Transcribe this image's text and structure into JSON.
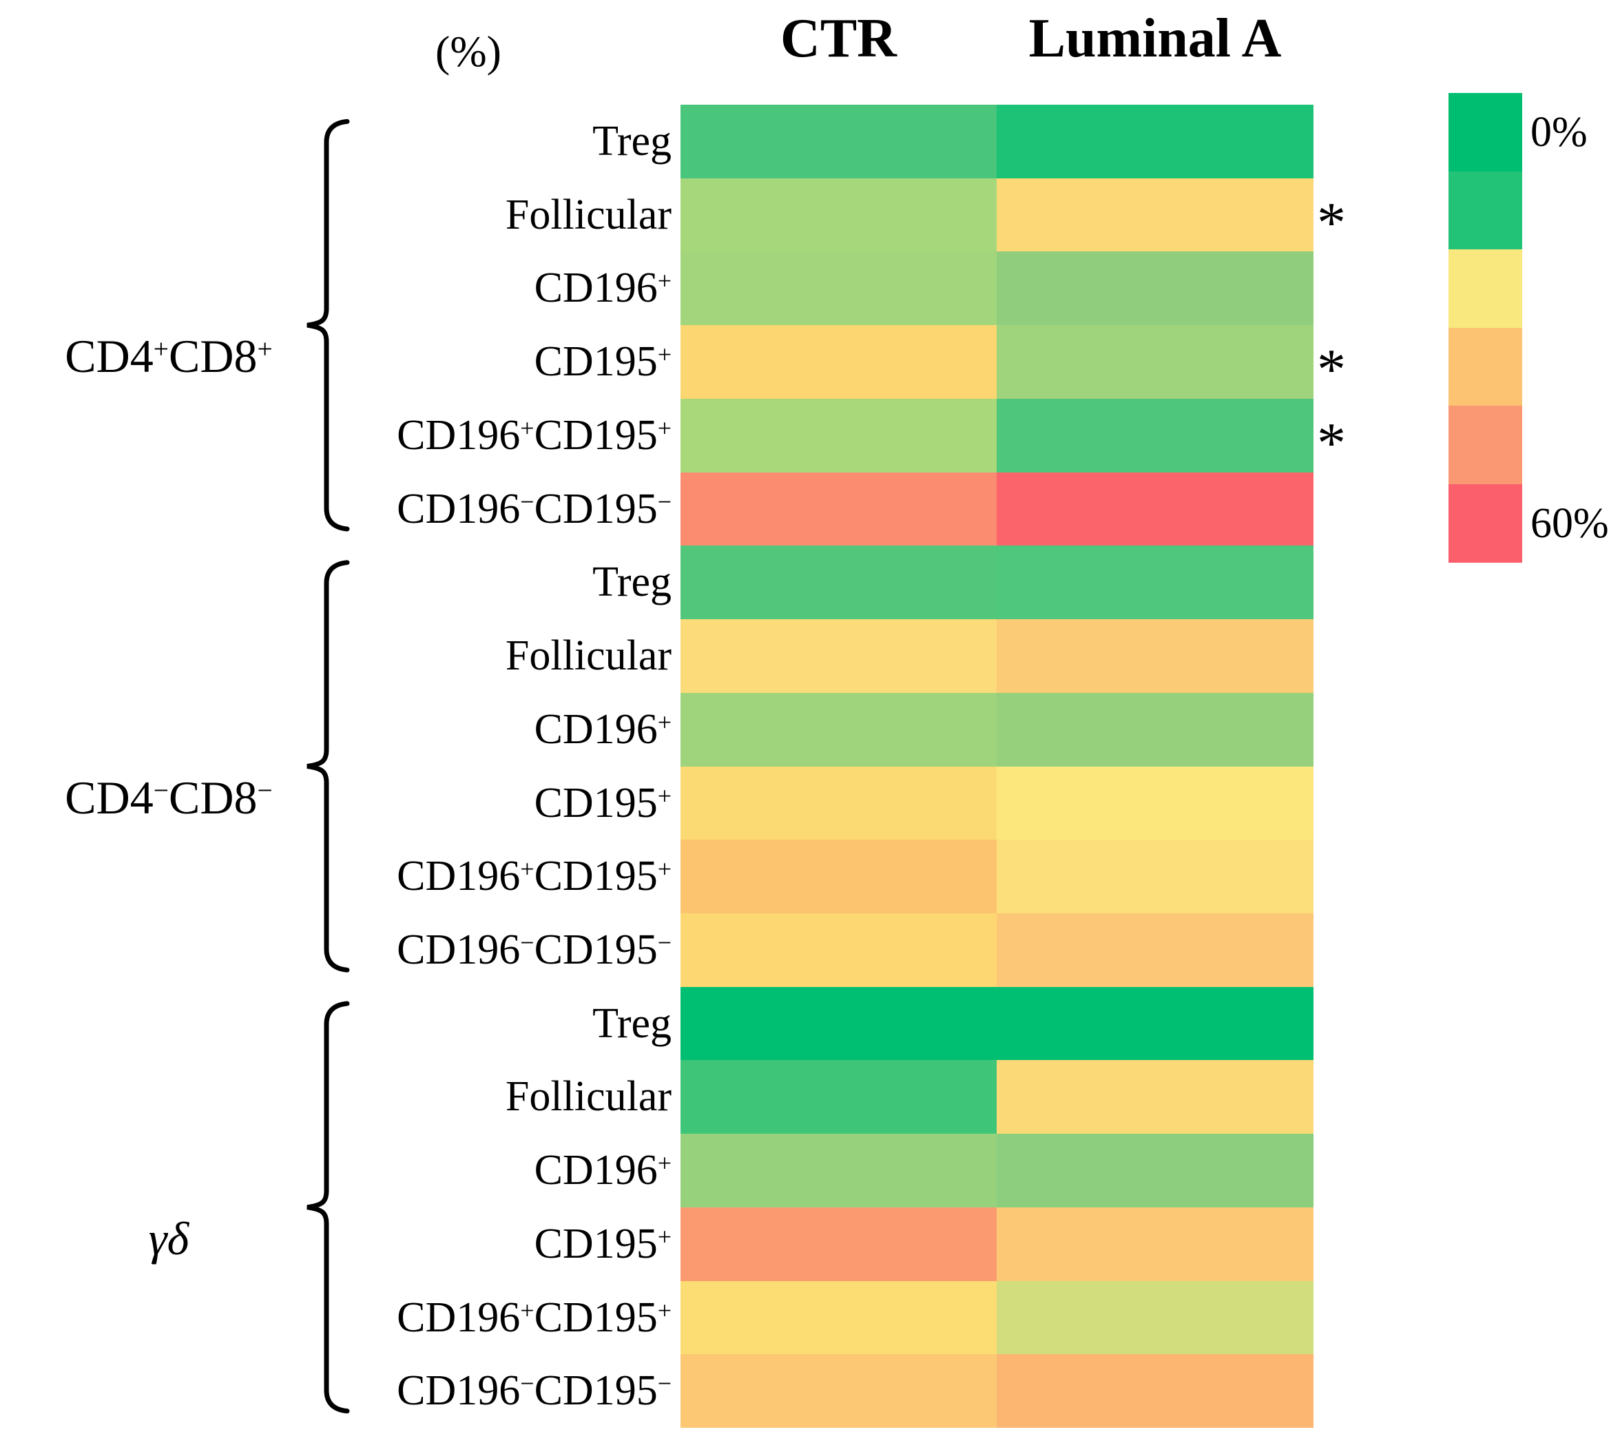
{
  "header": {
    "unit_label": "(%)",
    "columns": [
      "CTR",
      "Luminal A"
    ]
  },
  "legend": {
    "min_label": "0%",
    "max_label": "60%",
    "colors": [
      "#00BE71",
      "#22C377",
      "#F9E87E",
      "#FBC372",
      "#FB9874",
      "#FB5F6B"
    ]
  },
  "chart_data": {
    "type": "heatmap",
    "title": "",
    "unit": "percent",
    "columns": [
      "CTR",
      "Luminal A"
    ],
    "scale": {
      "min": 0,
      "max": 60,
      "min_label": "0%",
      "max_label": "60%",
      "orientation": "vertical",
      "legend_colors": [
        "#00BE71",
        "#22C377",
        "#F9E87E",
        "#FBC372",
        "#FB9874",
        "#FB5F6B"
      ]
    },
    "significance_marker": "*",
    "row_groups": [
      {
        "label": "CD4^+CD8^+",
        "italic": false
      },
      {
        "label": "CD4^−CD8^−",
        "italic": false
      },
      {
        "label": "γδ",
        "italic": true
      }
    ],
    "rows": [
      {
        "group": 0,
        "label": "Treg",
        "cell_colors": [
          "#49C57C",
          "#1EC276"
        ],
        "values_estimated_percent": [
          9,
          4
        ],
        "significant": false
      },
      {
        "group": 0,
        "label": "Follicular",
        "cell_colors": [
          "#A7D77B",
          "#FCD976"
        ],
        "values_estimated_percent": [
          20,
          34
        ],
        "significant": true
      },
      {
        "group": 0,
        "label": "CD196^+",
        "cell_colors": [
          "#A3D67C",
          "#90CE7D"
        ],
        "values_estimated_percent": [
          19,
          17
        ],
        "significant": false
      },
      {
        "group": 0,
        "label": "CD195^+",
        "cell_colors": [
          "#FCD670",
          "#A0D47C"
        ],
        "values_estimated_percent": [
          35,
          19
        ],
        "significant": true
      },
      {
        "group": 0,
        "label": "CD196^+CD195^+",
        "cell_colors": [
          "#A9D87B",
          "#4EC67B"
        ],
        "values_estimated_percent": [
          20,
          9
        ],
        "significant": true
      },
      {
        "group": 0,
        "label": "CD196^−CD195^−",
        "cell_colors": [
          "#FB8C70",
          "#FB646B"
        ],
        "values_estimated_percent": [
          52,
          59
        ],
        "significant": false
      },
      {
        "group": 1,
        "label": "Treg",
        "cell_colors": [
          "#52C67A",
          "#4FC77C"
        ],
        "values_estimated_percent": [
          10,
          9
        ],
        "significant": false
      },
      {
        "group": 1,
        "label": "Follicular",
        "cell_colors": [
          "#FCDB7A",
          "#FCCB76"
        ],
        "values_estimated_percent": [
          34,
          37
        ],
        "significant": false
      },
      {
        "group": 1,
        "label": "CD196^+",
        "cell_colors": [
          "#A0D47C",
          "#96D07D"
        ],
        "values_estimated_percent": [
          19,
          18
        ],
        "significant": false
      },
      {
        "group": 1,
        "label": "CD195^+",
        "cell_colors": [
          "#FCDA73",
          "#FCE77C"
        ],
        "values_estimated_percent": [
          34,
          31
        ],
        "significant": false
      },
      {
        "group": 1,
        "label": "CD196^+CD195^+",
        "cell_colors": [
          "#FCC46F",
          "#FCDF7A"
        ],
        "values_estimated_percent": [
          39,
          33
        ],
        "significant": false
      },
      {
        "group": 1,
        "label": "CD196^−CD195^−",
        "cell_colors": [
          "#FCD772",
          "#FCC877"
        ],
        "values_estimated_percent": [
          35,
          38
        ],
        "significant": false
      },
      {
        "group": 2,
        "label": "Treg",
        "cell_colors": [
          "#00BE72",
          "#00BE72"
        ],
        "values_estimated_percent": [
          1,
          1
        ],
        "significant": false
      },
      {
        "group": 2,
        "label": "Follicular",
        "cell_colors": [
          "#3EC578",
          "#FCD977"
        ],
        "values_estimated_percent": [
          7,
          34
        ],
        "significant": false
      },
      {
        "group": 2,
        "label": "CD196^+",
        "cell_colors": [
          "#98D17C",
          "#8CCD7E"
        ],
        "values_estimated_percent": [
          18,
          16
        ],
        "significant": false
      },
      {
        "group": 2,
        "label": "CD195^+",
        "cell_colors": [
          "#FB9A70",
          "#FCC875"
        ],
        "values_estimated_percent": [
          49,
          38
        ],
        "significant": false
      },
      {
        "group": 2,
        "label": "CD196^+CD195^+",
        "cell_colors": [
          "#FCDD73",
          "#D2DE7E"
        ],
        "values_estimated_percent": [
          33,
          25
        ],
        "significant": false
      },
      {
        "group": 2,
        "label": "CD196^−CD195^−",
        "cell_colors": [
          "#FCC873",
          "#FCB672"
        ],
        "values_estimated_percent": [
          38,
          42
        ],
        "significant": false
      }
    ]
  }
}
